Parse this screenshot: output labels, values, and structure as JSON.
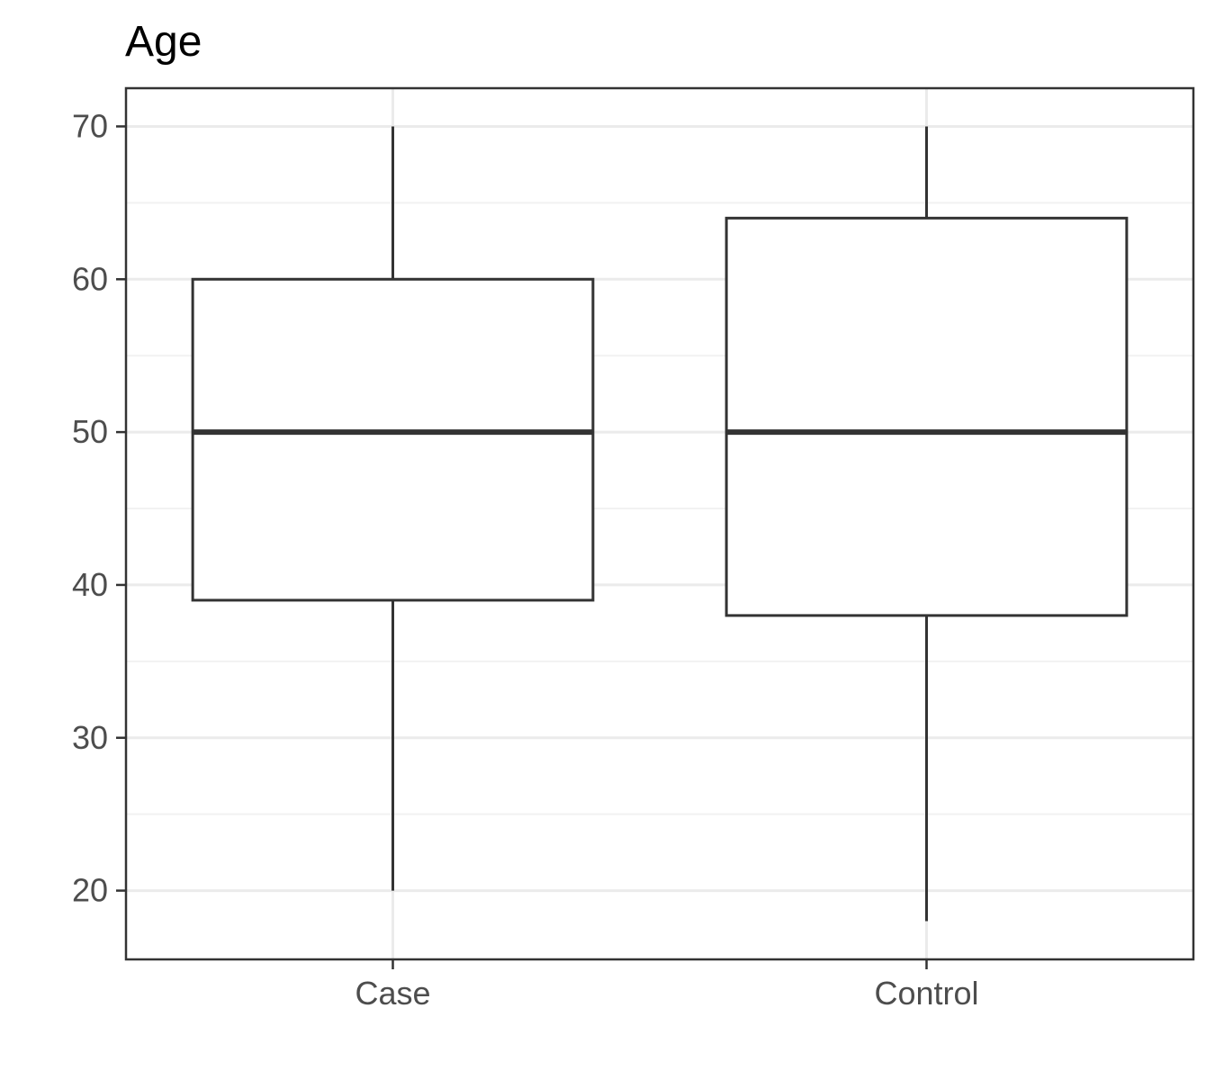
{
  "chart_data": {
    "type": "box",
    "title": "Age",
    "xlabel": "",
    "ylabel": "",
    "categories": [
      "Case",
      "Control"
    ],
    "boxes": [
      {
        "category": "Case",
        "min": 20,
        "q1": 39,
        "median": 50,
        "q3": 60,
        "max": 70
      },
      {
        "category": "Control",
        "min": 18,
        "q1": 38,
        "median": 50,
        "q3": 64,
        "max": 70
      }
    ],
    "y_ticks": [
      20,
      30,
      40,
      50,
      60,
      70
    ],
    "ylim": [
      15.5,
      72.5
    ],
    "grid": true,
    "legend": "none",
    "colors": {
      "box_stroke": "#333333",
      "box_fill": "#ffffff",
      "grid_major": "#ebebeb",
      "grid_minor": "#f2f2f2",
      "panel_border": "#333333",
      "tick_text": "#4d4d4d",
      "title_text": "#000000"
    }
  }
}
